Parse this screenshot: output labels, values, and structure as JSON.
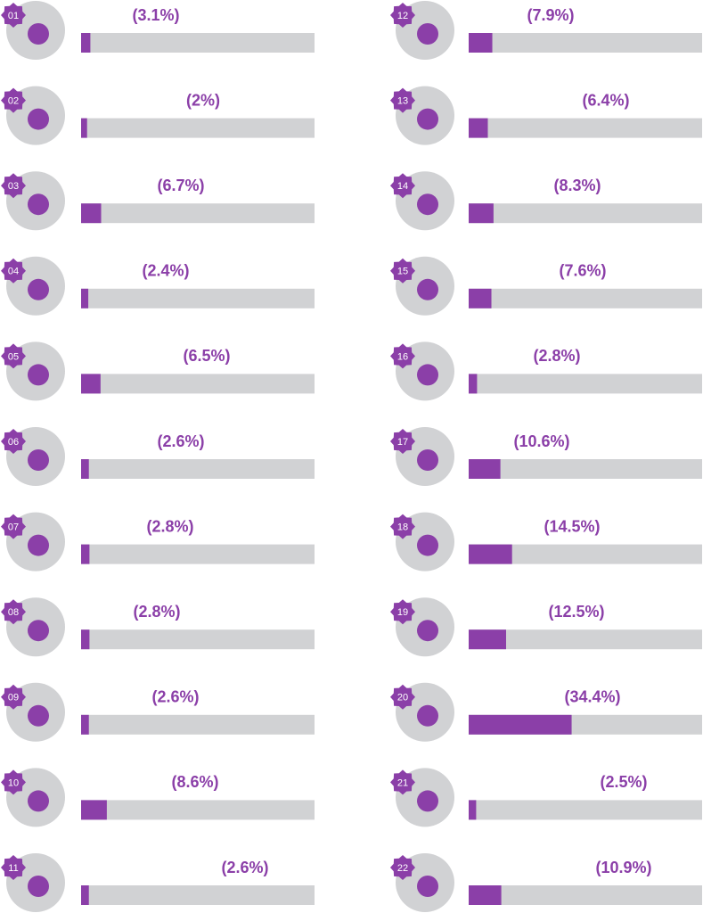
{
  "chart_data": {
    "type": "bar",
    "categories": [
      "01",
      "02",
      "03",
      "04",
      "05",
      "06",
      "07",
      "08",
      "09",
      "10",
      "11",
      "12",
      "13",
      "14",
      "15",
      "16",
      "17",
      "18",
      "19",
      "20",
      "21",
      "22"
    ],
    "values": [
      3.1,
      2,
      6.7,
      2.4,
      6.5,
      2.6,
      2.8,
      2.8,
      2.6,
      8.6,
      2.6,
      7.9,
      6.4,
      8.3,
      7.6,
      2.8,
      10.6,
      14.5,
      12.5,
      34.4,
      2.5,
      10.9
    ],
    "value_labels": [
      "(3.1%)",
      "(2%)",
      "(6.7%)",
      "(2.4%)",
      "(6.5%)",
      "(2.6%)",
      "(2.8%)",
      "(2.8%)",
      "(2.6%)",
      "(8.6%)",
      "(2.6%)",
      "(7.9%)",
      "(6.4%)",
      "(8.3%)",
      "(7.6%)",
      "(2.8%)",
      "(10.6%)",
      "(14.5%)",
      "(12.5%)",
      "(34.4%)",
      "(2.5%)",
      "(10.9%)"
    ],
    "color": "#8b3fa8",
    "track_color": "#d1d2d4",
    "xlim": [
      0,
      78
    ]
  }
}
